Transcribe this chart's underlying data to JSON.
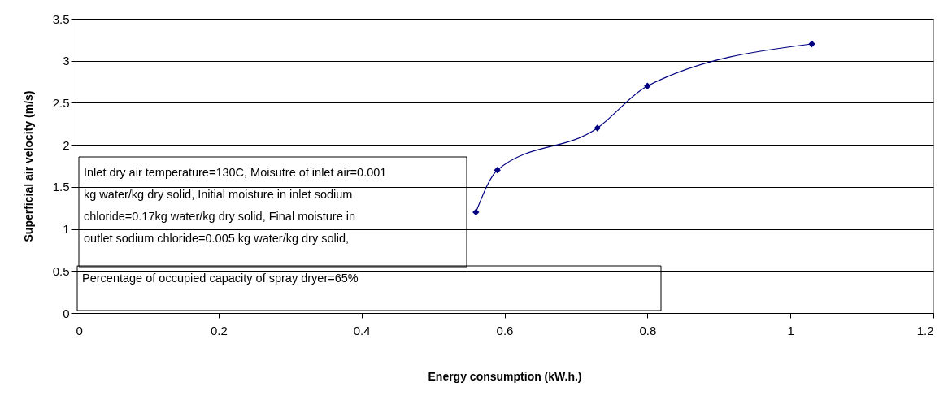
{
  "chart_data": {
    "type": "line",
    "xlabel": "Energy consumption (kW.h.)",
    "ylabel": "Superficial air velocity (m/s)",
    "x": [
      0.56,
      0.59,
      0.73,
      0.8,
      1.03
    ],
    "series": [
      {
        "color": "#000080",
        "values": [
          1.2,
          1.7,
          2.2,
          2.7,
          3.2
        ]
      }
    ],
    "xlim": [
      0,
      1.2
    ],
    "xticks": [
      0,
      0.2,
      0.4,
      0.6,
      0.8,
      1,
      1.2
    ],
    "ylim": [
      0,
      3.5
    ],
    "yticks": [
      0,
      0.5,
      1,
      1.5,
      2,
      2.5,
      3,
      3.5
    ],
    "grid": "y",
    "marker": "diamond",
    "line_style": "solid",
    "annotations": [
      "Inlet dry air temperature=130C, Moisutre of inlet air=0.001 kg water/kg dry solid, Initial moisture in inlet sodium chloride=0.17kg water/kg dry solid, Final moisture in outlet sodium chloride=0.005 kg water/kg dry solid,",
      "Percentage of occupied capacity of spray dryer=65%"
    ]
  }
}
